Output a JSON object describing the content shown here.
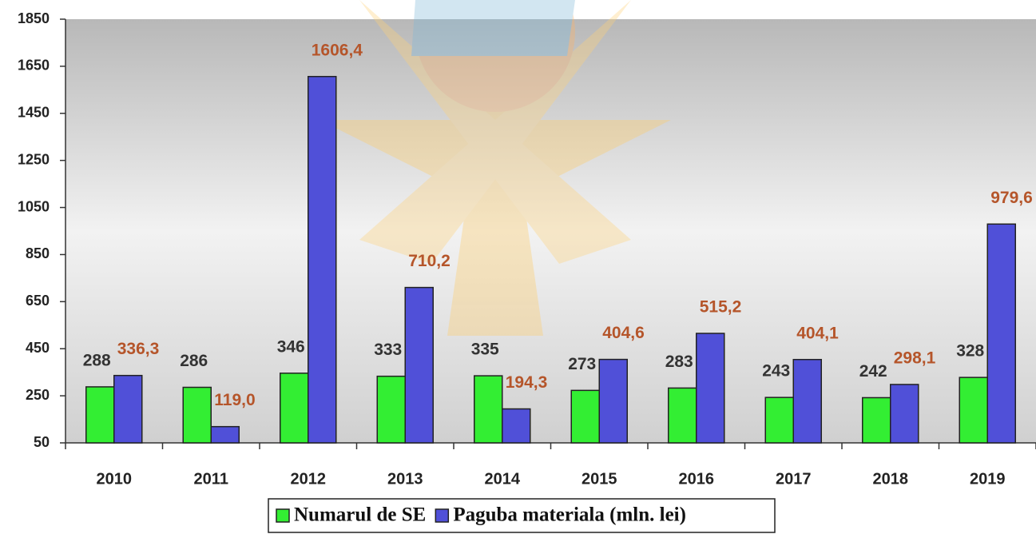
{
  "chart_data": {
    "type": "bar",
    "categories": [
      "2010",
      "2011",
      "2012",
      "2013",
      "2014",
      "2015",
      "2016",
      "2017",
      "2018",
      "2019"
    ],
    "series": [
      {
        "name": "Numarul de SE",
        "color": "#33ee33",
        "label_color": "#333333",
        "values": [
          288,
          286,
          346,
          333,
          335,
          273,
          283,
          243,
          242,
          328
        ]
      },
      {
        "name": "Paguba materiala (mln. lei)",
        "color": "#5050d8",
        "label_color": "#b5552a",
        "values": [
          336.3,
          119.0,
          1606.4,
          710.2,
          194.3,
          404.6,
          515.2,
          404.1,
          298.1,
          979.6
        ],
        "value_labels": [
          "336,3",
          "119,0",
          "1606,4",
          "710,2",
          "194,3",
          "404,6",
          "515,2",
          "404,1",
          "298,1",
          "979,6"
        ]
      }
    ],
    "ylim": [
      50,
      1850
    ],
    "yticks": [
      50,
      250,
      450,
      650,
      850,
      1050,
      1250,
      1450,
      1650,
      1850
    ],
    "grid": false
  }
}
